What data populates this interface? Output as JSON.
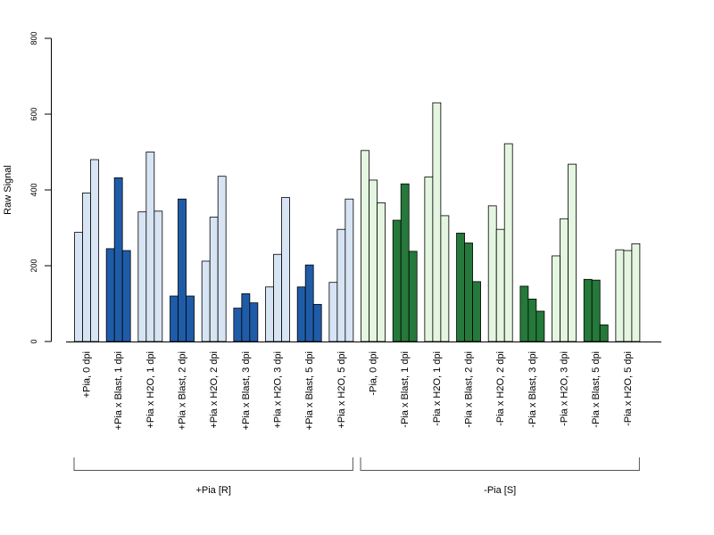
{
  "chart_data": {
    "type": "bar",
    "title": "",
    "xlabel": "",
    "ylabel": "Raw Signal",
    "ylim": [
      0,
      800
    ],
    "yticks": [
      "0",
      "200",
      "400",
      "600",
      "800"
    ],
    "grid": false,
    "bars_per_category": 3,
    "categories": [
      "+Pia, 0 dpi",
      "+Pia x Blast, 1 dpi",
      "+Pia x H2O, 1 dpi",
      "+Pia x Blast, 2 dpi",
      "+Pia x H2O, 2 dpi",
      "+Pia x Blast, 3 dpi",
      "+Pia x H2O, 3 dpi",
      "+Pia x Blast, 5 dpi",
      "+Pia x H2O, 5 dpi",
      "-Pia, 0 dpi",
      "-Pia x Blast, 1 dpi",
      "-Pia x H2O, 1 dpi",
      "-Pia x Blast, 2 dpi",
      "-Pia x H2O, 2 dpi",
      "-Pia x Blast, 3 dpi",
      "-Pia x H2O, 3 dpi",
      "-Pia x Blast, 5 dpi",
      "-Pia x H2O, 5 dpi"
    ],
    "values": [
      [
        288,
        392,
        480
      ],
      [
        245,
        432,
        240
      ],
      [
        342,
        500,
        344
      ],
      [
        120,
        376,
        120
      ],
      [
        212,
        328,
        436
      ],
      [
        88,
        126,
        102
      ],
      [
        144,
        230,
        380
      ],
      [
        144,
        202,
        98
      ],
      [
        156,
        296,
        376
      ],
      [
        504,
        426,
        366
      ],
      [
        320,
        416,
        238
      ],
      [
        434,
        630,
        332
      ],
      [
        286,
        260,
        158
      ],
      [
        358,
        296,
        522
      ],
      [
        146,
        112,
        80
      ],
      [
        226,
        324,
        468
      ],
      [
        164,
        162,
        44
      ],
      [
        242,
        240,
        258
      ]
    ],
    "colors": [
      "#d7e4f4",
      "#1f5ca8",
      "#d7e4f4",
      "#1f5ca8",
      "#d7e4f4",
      "#1f5ca8",
      "#d7e4f4",
      "#1f5ca8",
      "#d7e4f4",
      "#e4f5e0",
      "#25793a",
      "#e4f5e0",
      "#25793a",
      "#e4f5e0",
      "#25793a",
      "#e4f5e0",
      "#25793a",
      "#e4f5e0"
    ],
    "groups": [
      {
        "label": "+Pia [R]",
        "from": 0,
        "to": 8
      },
      {
        "label": "-Pia [S]",
        "from": 9,
        "to": 17
      }
    ]
  }
}
